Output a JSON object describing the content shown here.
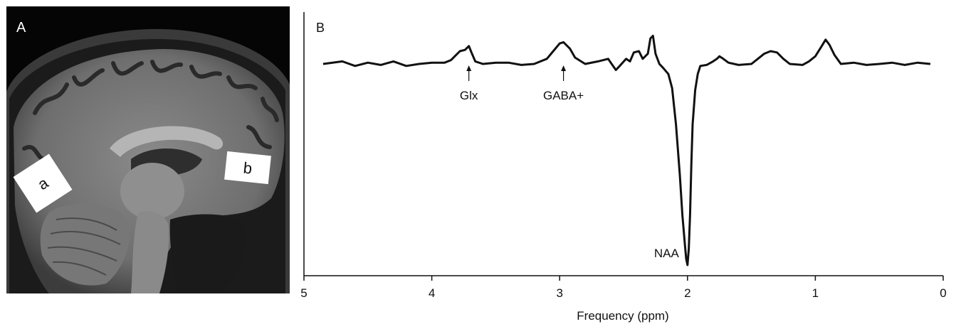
{
  "panel_a": {
    "label": "A",
    "roi_labels": [
      "a",
      "b"
    ]
  },
  "chart_data": {
    "type": "line",
    "panel_label": "B",
    "title": "",
    "xlabel": "Frequency (ppm)",
    "ylabel": "",
    "xlim": [
      5,
      0
    ],
    "x_reversed": true,
    "x_ticks": [
      5,
      4,
      3,
      2,
      1,
      0
    ],
    "grid": false,
    "legend": "none",
    "y_units": "relative",
    "series": [
      {
        "points": [
          [
            4.85,
            0.0
          ],
          [
            4.7,
            0.01
          ],
          [
            4.6,
            -0.01
          ],
          [
            4.5,
            0.005
          ],
          [
            4.4,
            -0.005
          ],
          [
            4.3,
            0.01
          ],
          [
            4.2,
            -0.01
          ],
          [
            4.1,
            0.0
          ],
          [
            4.0,
            0.005
          ],
          [
            3.9,
            0.005
          ],
          [
            3.85,
            0.015
          ],
          [
            3.82,
            0.03
          ],
          [
            3.78,
            0.05
          ],
          [
            3.74,
            0.055
          ],
          [
            3.71,
            0.07
          ],
          [
            3.69,
            0.045
          ],
          [
            3.66,
            0.01
          ],
          [
            3.6,
            0.0
          ],
          [
            3.5,
            0.005
          ],
          [
            3.4,
            0.005
          ],
          [
            3.3,
            -0.005
          ],
          [
            3.2,
            0.0
          ],
          [
            3.1,
            0.02
          ],
          [
            3.05,
            0.05
          ],
          [
            3.0,
            0.08
          ],
          [
            2.97,
            0.085
          ],
          [
            2.92,
            0.06
          ],
          [
            2.88,
            0.025
          ],
          [
            2.8,
            0.0
          ],
          [
            2.7,
            0.01
          ],
          [
            2.62,
            0.02
          ],
          [
            2.6,
            0.005
          ],
          [
            2.56,
            -0.03
          ],
          [
            2.53,
            -0.01
          ],
          [
            2.48,
            0.02
          ],
          [
            2.45,
            0.01
          ],
          [
            2.42,
            0.045
          ],
          [
            2.38,
            0.05
          ],
          [
            2.35,
            0.02
          ],
          [
            2.31,
            0.04
          ],
          [
            2.29,
            0.1
          ],
          [
            2.27,
            0.11
          ],
          [
            2.25,
            0.04
          ],
          [
            2.22,
            0.0
          ],
          [
            2.19,
            -0.02
          ],
          [
            2.15,
            -0.05
          ],
          [
            2.12,
            -0.12
          ],
          [
            2.09,
            -0.3
          ],
          [
            2.06,
            -0.55
          ],
          [
            2.04,
            -0.75
          ],
          [
            2.02,
            -0.9
          ],
          [
            2.01,
            -0.97
          ],
          [
            2.0,
            -1.0
          ],
          [
            1.99,
            -0.92
          ],
          [
            1.98,
            -0.75
          ],
          [
            1.97,
            -0.5
          ],
          [
            1.96,
            -0.3
          ],
          [
            1.94,
            -0.13
          ],
          [
            1.92,
            -0.05
          ],
          [
            1.9,
            -0.01
          ],
          [
            1.85,
            -0.005
          ],
          [
            1.8,
            0.01
          ],
          [
            1.77,
            0.02
          ],
          [
            1.75,
            0.03
          ],
          [
            1.72,
            0.02
          ],
          [
            1.68,
            0.005
          ],
          [
            1.6,
            -0.005
          ],
          [
            1.5,
            0.0
          ],
          [
            1.45,
            0.02
          ],
          [
            1.4,
            0.04
          ],
          [
            1.35,
            0.05
          ],
          [
            1.3,
            0.045
          ],
          [
            1.25,
            0.02
          ],
          [
            1.2,
            0.0
          ],
          [
            1.1,
            -0.005
          ],
          [
            1.05,
            0.01
          ],
          [
            1.0,
            0.03
          ],
          [
            0.95,
            0.07
          ],
          [
            0.92,
            0.095
          ],
          [
            0.89,
            0.075
          ],
          [
            0.85,
            0.035
          ],
          [
            0.8,
            0.0
          ],
          [
            0.7,
            0.005
          ],
          [
            0.6,
            -0.005
          ],
          [
            0.5,
            0.0
          ],
          [
            0.4,
            0.005
          ],
          [
            0.3,
            -0.005
          ],
          [
            0.2,
            0.005
          ],
          [
            0.1,
            0.0
          ]
        ]
      }
    ],
    "annotations": [
      {
        "text": "Glx",
        "x": 3.71,
        "arrow": true
      },
      {
        "text": "GABA+",
        "x": 2.97,
        "arrow": true
      },
      {
        "text": "NAA",
        "x": 2.0,
        "arrow": false
      }
    ]
  }
}
